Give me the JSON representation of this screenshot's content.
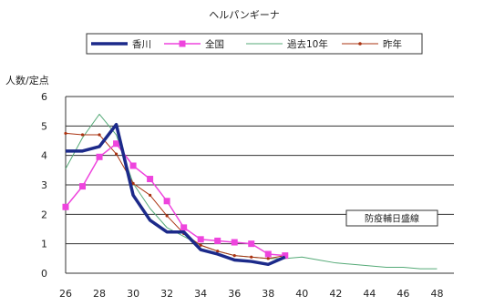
{
  "chart_data": {
    "type": "line",
    "title": "ヘルパンギーナ",
    "ylabel": "人数/定点",
    "xlim": [
      26,
      49
    ],
    "ylim": [
      0,
      6
    ],
    "xticks": [
      26,
      28,
      30,
      32,
      34,
      36,
      38,
      40,
      42,
      44,
      46,
      48
    ],
    "yticks": [
      0,
      1,
      2,
      3,
      4,
      5,
      6
    ],
    "grid": "horizontal",
    "legend": "top",
    "annotation": "防疫輔日盛線",
    "series": [
      {
        "name": "香川",
        "color": "#1c2a8a",
        "width": 3.5,
        "marker": "none",
        "x": [
          26,
          27,
          28,
          29,
          30,
          31,
          32,
          33,
          34,
          35,
          36,
          37,
          38,
          39
        ],
        "y": [
          4.15,
          4.15,
          4.3,
          5.05,
          2.65,
          1.8,
          1.4,
          1.4,
          0.8,
          0.65,
          0.45,
          0.4,
          0.3,
          0.55
        ]
      },
      {
        "name": "全国",
        "color": "#ee44dd",
        "width": 1.5,
        "marker": "square",
        "x": [
          26,
          27,
          28,
          29,
          30,
          31,
          32,
          33,
          34,
          35,
          36,
          37,
          38,
          39
        ],
        "y": [
          2.25,
          2.95,
          3.95,
          4.4,
          3.65,
          3.2,
          2.45,
          1.55,
          1.15,
          1.1,
          1.05,
          1.0,
          0.65,
          0.6
        ]
      },
      {
        "name": "過去10年",
        "color": "#55aa77",
        "width": 1,
        "marker": "none",
        "x": [
          26,
          27,
          28,
          29,
          30,
          31,
          32,
          33,
          34,
          35,
          36,
          37,
          38,
          39,
          40,
          41,
          42,
          43,
          44,
          45,
          46,
          47,
          48
        ],
        "y": [
          3.55,
          4.6,
          5.4,
          4.7,
          3.05,
          2.2,
          1.55,
          1.25,
          0.95,
          0.75,
          0.6,
          0.55,
          0.5,
          0.5,
          0.55,
          0.45,
          0.35,
          0.3,
          0.25,
          0.2,
          0.2,
          0.15,
          0.15
        ]
      },
      {
        "name": "昨年",
        "color": "#aa3311",
        "width": 1,
        "marker": "dot",
        "x": [
          26,
          27,
          28,
          29,
          30,
          31,
          32,
          33,
          34,
          35,
          36,
          37,
          38,
          39
        ],
        "y": [
          4.75,
          4.7,
          4.7,
          4.05,
          3.05,
          2.65,
          1.95,
          1.35,
          0.95,
          0.75,
          0.6,
          0.55,
          0.5,
          0.6
        ]
      }
    ]
  }
}
